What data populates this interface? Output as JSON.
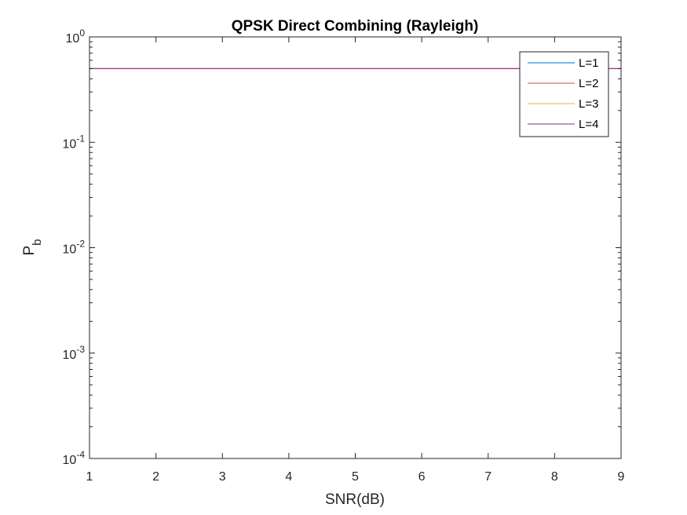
{
  "chart_data": {
    "type": "line",
    "title": "QPSK Direct Combining (Rayleigh)",
    "xlabel": "SNR(dB)",
    "ylabel": {
      "main": "P",
      "subscript": "b"
    },
    "x_scale": "linear",
    "y_scale": "log",
    "xlim": [
      1,
      9
    ],
    "ylim": [
      0.0001,
      1
    ],
    "x_ticks": [
      "1",
      "2",
      "3",
      "4",
      "5",
      "6",
      "7",
      "8",
      "9"
    ],
    "y_ticks": [
      {
        "value": 0.0001,
        "base": "10",
        "exponent": "-4"
      },
      {
        "value": 0.001,
        "base": "10",
        "exponent": "-3"
      },
      {
        "value": 0.01,
        "base": "10",
        "exponent": "-2"
      },
      {
        "value": 0.1,
        "base": "10",
        "exponent": "-1"
      },
      {
        "value": 1,
        "base": "10",
        "exponent": "0"
      }
    ],
    "x": [
      1,
      2,
      3,
      4,
      5,
      6,
      7,
      8,
      9
    ],
    "series": [
      {
        "name": "L=1",
        "color": "#0072BD",
        "values": [
          0.5,
          0.5,
          0.5,
          0.5,
          0.5,
          0.5,
          0.5,
          0.5,
          0.5
        ]
      },
      {
        "name": "L=2",
        "color": "#D95319",
        "values": [
          0.5,
          0.5,
          0.5,
          0.5,
          0.5,
          0.5,
          0.5,
          0.5,
          0.5
        ]
      },
      {
        "name": "L=3",
        "color": "#EDB120",
        "values": [
          0.5,
          0.5,
          0.5,
          0.5,
          0.5,
          0.5,
          0.5,
          0.5,
          0.5
        ]
      },
      {
        "name": "L=4",
        "color": "#7E2F8E",
        "values": [
          0.5,
          0.5,
          0.5,
          0.5,
          0.5,
          0.5,
          0.5,
          0.5,
          0.5
        ]
      }
    ],
    "legend_position": "top-right",
    "grid": false
  }
}
